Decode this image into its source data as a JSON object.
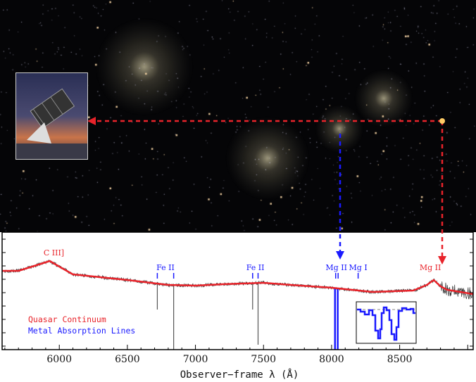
{
  "chart_data": {
    "type": "line",
    "xlabel": "Observer−frame λ (Å)",
    "ylabel": "",
    "xlim": [
      5580,
      9040
    ],
    "ylim": [
      0,
      1.67
    ],
    "xticks": [
      6000,
      6500,
      7000,
      7500,
      8000,
      8500
    ],
    "grid": false,
    "legend": "bottom-left",
    "legend_entries": [
      {
        "label": "Quasar Continuum",
        "color": "#e8232a"
      },
      {
        "label": "Metal Absorption Lines",
        "color": "#1a1aff"
      }
    ],
    "series": [
      {
        "name": "Quasar Continuum",
        "color": "#e8232a",
        "x": [
          5580,
          5700,
          5800,
          5930,
          6000,
          6100,
          6300,
          6500,
          6800,
          7000,
          7200,
          7500,
          7700,
          8000,
          8300,
          8600,
          8700,
          8750,
          8800,
          8850,
          9040
        ],
        "y": [
          1.12,
          1.12,
          1.18,
          1.26,
          1.18,
          1.07,
          1.03,
          0.99,
          0.92,
          0.91,
          0.93,
          0.95,
          0.92,
          0.88,
          0.82,
          0.84,
          0.92,
          0.99,
          0.9,
          0.85,
          0.79
        ]
      }
    ],
    "absorption_lines": [
      {
        "x": 6720,
        "depth_to": 0.57,
        "color": "#555"
      },
      {
        "x": 6840,
        "depth_to": 0.0,
        "color": "#555"
      },
      {
        "x": 7420,
        "depth_to": 0.57,
        "color": "#555"
      },
      {
        "x": 7460,
        "depth_to": 0.07,
        "color": "#555"
      },
      {
        "x": 8025,
        "depth_to": 0.0,
        "color": "#1a1aff"
      },
      {
        "x": 8045,
        "depth_to": 0.0,
        "color": "#1a1aff"
      }
    ],
    "annotations": [
      {
        "text": "C III]",
        "x": 5960,
        "color": "#e8232a",
        "ticks": []
      },
      {
        "text": "Fe II",
        "x": 6780,
        "color": "#1a1aff",
        "ticks": [
          6720,
          6840
        ]
      },
      {
        "text": "Fe II",
        "x": 7440,
        "color": "#1a1aff",
        "ticks": [
          7420,
          7460
        ]
      },
      {
        "text": "Mg II",
        "x": 8035,
        "color": "#1a1aff",
        "ticks": [
          8030,
          8048
        ]
      },
      {
        "text": "Mg I",
        "x": 8195,
        "color": "#1a1aff",
        "ticks": [
          8195
        ]
      },
      {
        "text": "Mg II",
        "x": 8725,
        "color": "#e8232a",
        "ticks": []
      }
    ]
  }
}
